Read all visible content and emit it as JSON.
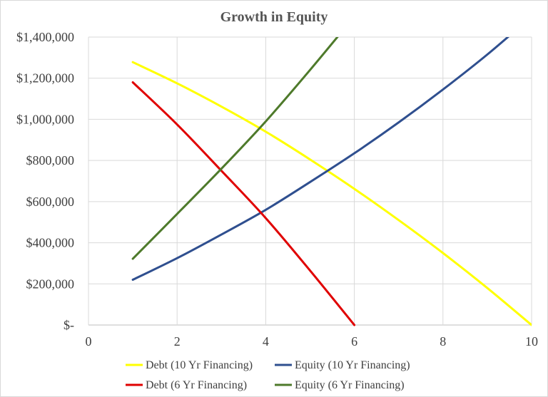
{
  "chart_data": {
    "type": "line",
    "title": "Growth in Equity",
    "xlabel": "",
    "ylabel": "",
    "xlim": [
      0,
      10
    ],
    "ylim": [
      0,
      1400000
    ],
    "x_ticks": [
      "0",
      "2",
      "4",
      "6",
      "8",
      "10"
    ],
    "y_ticks": [
      "$-",
      "$200,000",
      "$400,000",
      "$600,000",
      "$800,000",
      "$1,000,000",
      "$1,200,000",
      "$1,400,000"
    ],
    "grid": true,
    "legend_position": "bottom",
    "series": [
      {
        "name": "Debt (10 Yr Financing)",
        "color": "#FFFF00",
        "points": [
          [
            1,
            1278000
          ],
          [
            2,
            1175000
          ],
          [
            3,
            1062000
          ],
          [
            4,
            940000
          ],
          [
            5,
            805000
          ],
          [
            6,
            662000
          ],
          [
            7,
            510000
          ],
          [
            8,
            350000
          ],
          [
            9,
            180000
          ],
          [
            10,
            0
          ]
        ]
      },
      {
        "name": "Equity (10 Yr Financing)",
        "color": "#2F4F8F",
        "points": [
          [
            1,
            220000
          ],
          [
            2,
            325000
          ],
          [
            3,
            440000
          ],
          [
            4,
            560000
          ],
          [
            5,
            695000
          ],
          [
            6,
            835000
          ],
          [
            7,
            985000
          ],
          [
            8,
            1145000
          ],
          [
            9,
            1315000
          ],
          [
            10,
            1500000
          ]
        ]
      },
      {
        "name": "Debt (6 Yr Financing)",
        "color": "#E00000",
        "points": [
          [
            1,
            1180000
          ],
          [
            2,
            975000
          ],
          [
            3,
            750000
          ],
          [
            4,
            520000
          ],
          [
            5,
            265000
          ],
          [
            6,
            0
          ]
        ]
      },
      {
        "name": "Equity (6 Yr Financing)",
        "color": "#4E7A2B",
        "points": [
          [
            1,
            322000
          ],
          [
            2,
            540000
          ],
          [
            3,
            760000
          ],
          [
            4,
            990000
          ],
          [
            5,
            1240000
          ],
          [
            6,
            1500000
          ]
        ]
      }
    ]
  }
}
